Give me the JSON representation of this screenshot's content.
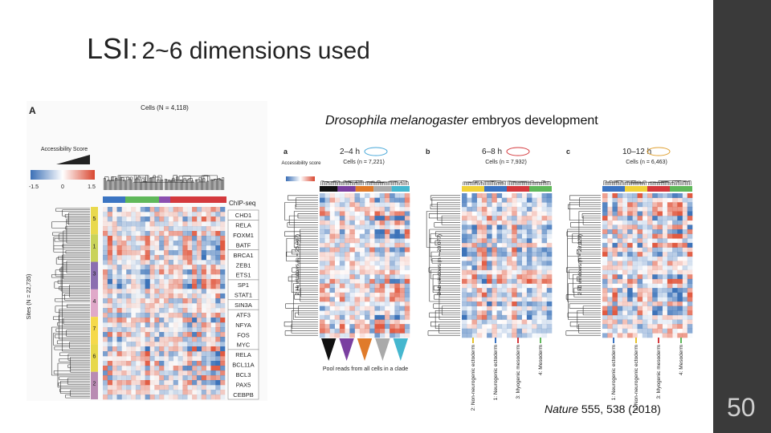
{
  "title": {
    "prefix": "LSI:",
    "text": "2~6 dimensions used"
  },
  "caption": {
    "species": "Drosophila melanogaster",
    "text": "embryos development"
  },
  "left_figure": {
    "panel": "A",
    "cells_label": "Cells (N = 4,118)",
    "legend_title": "Accessibility Score",
    "legend_ticks": [
      "-1.5",
      "0",
      "1.5"
    ],
    "chip_header": "ChIP-seq",
    "sites_label": "Sites (N = 22,735)",
    "clusters": [
      "5",
      "1",
      "3",
      "4",
      "7",
      "6",
      "2"
    ],
    "gene_groups": [
      [
        "CHD1"
      ],
      [
        "RELA",
        "FOXM1",
        "BATF"
      ],
      [
        "BRCA1",
        "ZEB1",
        "ETS1"
      ],
      [
        "SP1",
        "STAT1"
      ],
      [
        "SIN3A"
      ],
      [
        "ATF3",
        "NFYA",
        "FOS",
        "MYC"
      ],
      [
        "RELA",
        "BCL11A",
        "BCL3",
        "PAX5",
        "CEBPB"
      ]
    ]
  },
  "right_figure": {
    "legend_title": "Accessibility score",
    "footer": "Pool reads from all cells in a clade",
    "panels": [
      {
        "letter": "a",
        "time": "2–4 h",
        "cells": "Cells (n = 7,221)",
        "windows": "2 kb windows (n = 25,087)",
        "clusters": []
      },
      {
        "letter": "b",
        "time": "6–8 h",
        "cells": "Cells (n = 7,932)",
        "windows": "2 kb windows (n = 20,077)",
        "clusters": [
          "2: Non-neurogenic ectoderm",
          "1: Neurogenic ectoderm",
          "3: Myogenic mesoderm",
          "4: Mesoderm"
        ]
      },
      {
        "letter": "c",
        "time": "10–12 h",
        "cells": "Cells (n = 6,463)",
        "windows": "2 kb windows (n = 20,029)",
        "clusters": [
          "1: Neurogenic ectoderm",
          "2: Non-neurogenic ectoderm",
          "3: Myogenic mesoderm",
          "4: Mesoderm"
        ]
      }
    ]
  },
  "citation": {
    "journal": "Nature",
    "text": "555, 538 (2018)"
  },
  "page_number": "50"
}
